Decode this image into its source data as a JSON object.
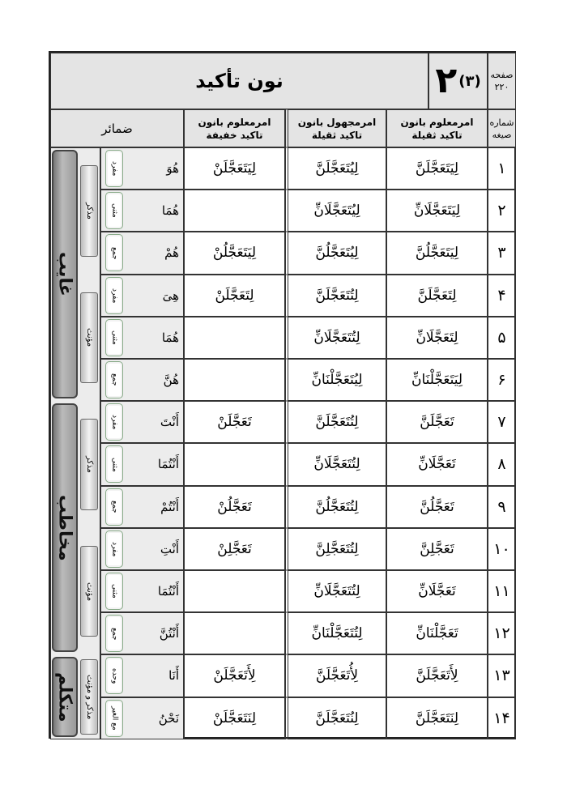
{
  "header": {
    "title": "نون تأکید",
    "lesson_number": "۲",
    "sub_number": "(۳)",
    "page_label": "صفحه",
    "page_number": "۲۲۰"
  },
  "columns": {
    "number": "شماره صیغه",
    "amr_maloom_thaqila": "امرمعلوم بانون تاکید ثقیلة",
    "amr_majhool_thaqila": "امرمجهول بانون تاکید ثقیلة",
    "amr_maloom_khafifa": "امرمعلوم بانون تاکید خفیفة",
    "pronouns": "ضمائر"
  },
  "rows": [
    {
      "n": "۱",
      "a": "لِيَتَعَجَّلَنَّ",
      "b": "لِيُتَعَجَّلَنَّ",
      "c": "لِيَتَعَجَّلَنْ",
      "p": "هُوَ",
      "l": "مفرد"
    },
    {
      "n": "۲",
      "a": "لِيَتَعَجَّلَانِّ",
      "b": "لِيُتَعَجَّلَانِّ",
      "c": "",
      "p": "هُمَا",
      "l": "مثنی"
    },
    {
      "n": "۳",
      "a": "لِيَتَعَجَّلُنَّ",
      "b": "لِيُتَعَجَّلُنَّ",
      "c": "لِيَتَعَجَّلُنْ",
      "p": "هُمْ",
      "l": "جمع"
    },
    {
      "n": "۴",
      "a": "لِتَعَجَّلَنَّ",
      "b": "لِتُتَعَجَّلَنَّ",
      "c": "لِتَعَجَّلَنْ",
      "p": "هِیَ",
      "l": "مفرد"
    },
    {
      "n": "۵",
      "a": "لِتَعَجَّلَانِّ",
      "b": "لِتُتَعَجَّلَانِّ",
      "c": "",
      "p": "هُمَا",
      "l": "مثنی"
    },
    {
      "n": "۶",
      "a": "لِيَتَعَجَّلْنَانِّ",
      "b": "لِيُتَعَجَّلْنَانِّ",
      "c": "",
      "p": "هُنَّ",
      "l": "جمع"
    },
    {
      "n": "۷",
      "a": "تَعَجَّلَنَّ",
      "b": "لِتُتَعَجَّلَنَّ",
      "c": "تَعَجَّلَنْ",
      "p": "أَنْتَ",
      "l": "مفرد"
    },
    {
      "n": "۸",
      "a": "تَعَجَّلَانِّ",
      "b": "لِتُتَعَجَّلَانِّ",
      "c": "",
      "p": "أَنْتُمَا",
      "l": "مثنی"
    },
    {
      "n": "۹",
      "a": "تَعَجَّلُنَّ",
      "b": "لِتُتَعَجَّلُنَّ",
      "c": "تَعَجَّلُنْ",
      "p": "أَنْتُمْ",
      "l": "جمع"
    },
    {
      "n": "۱۰",
      "a": "تَعَجَّلِنَّ",
      "b": "لِتُتَعَجَّلِنَّ",
      "c": "تَعَجَّلِنْ",
      "p": "أَنْتِ",
      "l": "مفرد"
    },
    {
      "n": "۱۱",
      "a": "تَعَجَّلَانِّ",
      "b": "لِتُتَعَجَّلَانِّ",
      "c": "",
      "p": "أَنْتُمَا",
      "l": "مثنی"
    },
    {
      "n": "۱۲",
      "a": "تَعَجَّلْنَانِّ",
      "b": "لِتُتَعَجَّلْنَانِّ",
      "c": "",
      "p": "أَنْتُنَّ",
      "l": "جمع"
    },
    {
      "n": "۱۳",
      "a": "لِأَتَعَجَّلَنَّ",
      "b": "لِأُتَعَجَّلَنَّ",
      "c": "لِأَتَعَجَّلَنْ",
      "p": "أَنَا",
      "l": "وحده"
    },
    {
      "n": "۱۴",
      "a": "لِنَتَعَجَّلَنَّ",
      "b": "لِنُتَعَجَّلَنَّ",
      "c": "لِنَتَعَجَّلَنْ",
      "p": "نَحْنُ",
      "l": "مع الغیر"
    }
  ],
  "persons": [
    {
      "label": "غایب",
      "from": 0,
      "to": 5
    },
    {
      "label": "مخاطب",
      "from": 6,
      "to": 11
    },
    {
      "label": "متکلم",
      "from": 12,
      "to": 13
    }
  ],
  "genders": [
    {
      "label": "مذکر",
      "from": 0,
      "to": 2
    },
    {
      "label": "مؤنث",
      "from": 3,
      "to": 5
    },
    {
      "label": "مذکر",
      "from": 6,
      "to": 8
    },
    {
      "label": "مؤنث",
      "from": 9,
      "to": 11
    },
    {
      "label": "مذکر و مؤنث",
      "from": 12,
      "to": 13
    }
  ]
}
